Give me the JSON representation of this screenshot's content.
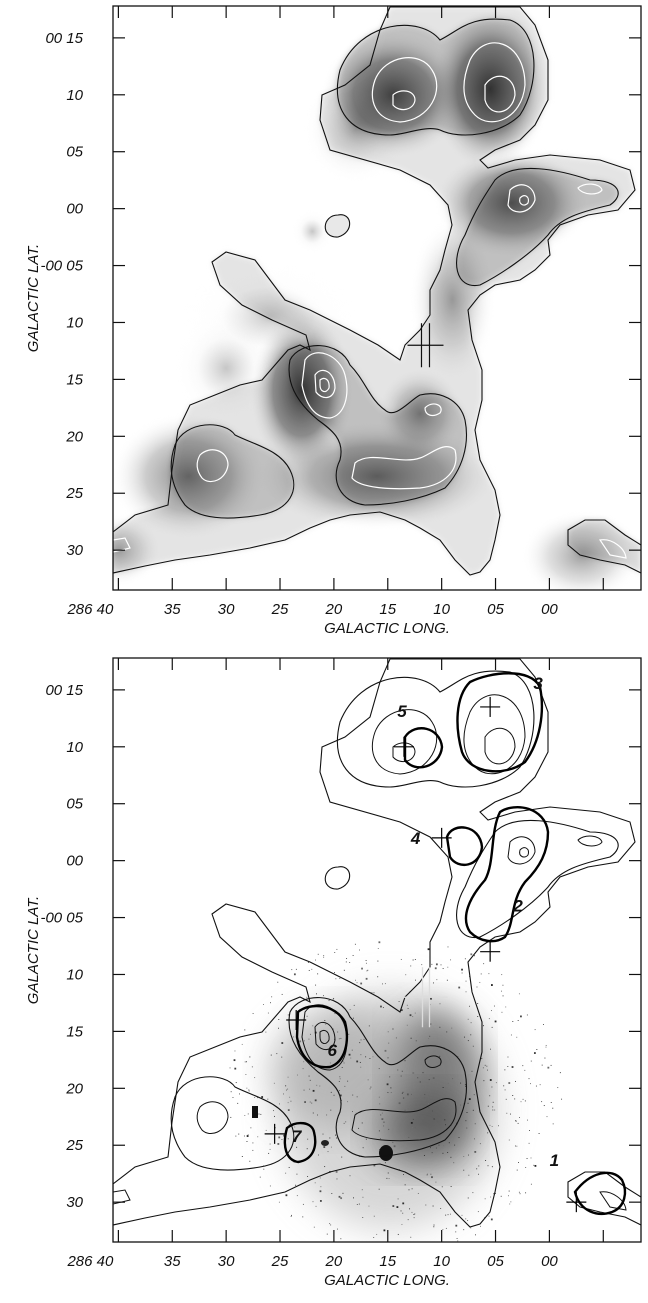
{
  "chart_data": [
    {
      "type": "heatmap",
      "xlabel": "GALACTIC LONG.",
      "ylabel": "GALACTIC LAT.",
      "x_ticks": [
        "286 40",
        "35",
        "30",
        "25",
        "20",
        "15",
        "10",
        "05",
        "00"
      ],
      "y_ticks": [
        "00 15",
        "10",
        "05",
        "00",
        "-00 05",
        "10",
        "15",
        "20",
        "25",
        "30"
      ],
      "xlim": [
        40.5,
        -8.5
      ],
      "ylim": [
        -33.5,
        17.8
      ],
      "colormap": "greyscale",
      "cross_marker": {
        "x": 11.5,
        "y": -12
      },
      "clumps": [
        {
          "x": 14.5,
          "y": 10,
          "rx": 4.2,
          "ry": 3.5,
          "peak": 0.9
        },
        {
          "x": 5.5,
          "y": 10.5,
          "rx": 3.5,
          "ry": 4.5,
          "peak": 1.0
        },
        {
          "x": 3.5,
          "y": 0.5,
          "rx": 4.5,
          "ry": 3.0,
          "peak": 0.8
        },
        {
          "x": 23,
          "y": -16,
          "rx": 3.0,
          "ry": 4.5,
          "peak": 1.0
        },
        {
          "x": 33.5,
          "y": -23.5,
          "rx": 4.5,
          "ry": 3.5,
          "peak": 0.65
        },
        {
          "x": 16,
          "y": -23.5,
          "rx": 7.0,
          "ry": 3.0,
          "peak": 0.7
        },
        {
          "x": 12,
          "y": -18,
          "rx": 2.5,
          "ry": 2.5,
          "peak": 0.55
        },
        {
          "x": 9,
          "y": -8,
          "rx": 2.5,
          "ry": 4.5,
          "peak": 0.45
        },
        {
          "x": 18,
          "y": 7,
          "rx": 3.0,
          "ry": 3.0,
          "peak": 0.35
        },
        {
          "x": 26,
          "y": -9.5,
          "rx": 5.0,
          "ry": 3.0,
          "peak": 0.28
        },
        {
          "x": 30,
          "y": -14,
          "rx": 3.0,
          "ry": 3.0,
          "peak": 0.3
        },
        {
          "x": 40,
          "y": -30,
          "rx": 2.5,
          "ry": 2.0,
          "peak": 0.45
        },
        {
          "x": -3,
          "y": -30.5,
          "rx": 3.5,
          "ry": 2.5,
          "peak": 0.5
        },
        {
          "x": 22,
          "y": -2,
          "rx": 1.2,
          "ry": 1.2,
          "peak": 0.3
        }
      ]
    },
    {
      "type": "heatmap",
      "xlabel": "GALACTIC LONG.",
      "ylabel": "GALACTIC LAT.",
      "x_ticks": [
        "286 40",
        "35",
        "30",
        "25",
        "20",
        "15",
        "10",
        "05",
        "00"
      ],
      "y_ticks": [
        "00 15",
        "10",
        "05",
        "00",
        "-00 05",
        "10",
        "15",
        "20",
        "25",
        "30"
      ],
      "xlim": [
        40.5,
        -8.5
      ],
      "ylim": [
        -33.5,
        17.8
      ],
      "colormap": "greyscale",
      "sources": [
        {
          "label": "1",
          "x": -2.5,
          "y": -30
        },
        {
          "label": "2",
          "x": 5.5,
          "y": -8
        },
        {
          "label": "3",
          "x": 5.5,
          "y": 13.5
        },
        {
          "label": "4",
          "x": 10,
          "y": 2
        },
        {
          "label": "5",
          "x": 13.5,
          "y": 10
        },
        {
          "label": "6",
          "x": 23.5,
          "y": -14
        },
        {
          "label": "7",
          "x": 25.5,
          "y": -24
        }
      ],
      "cross_marker": {
        "x": 11.5,
        "y": -12
      }
    }
  ]
}
